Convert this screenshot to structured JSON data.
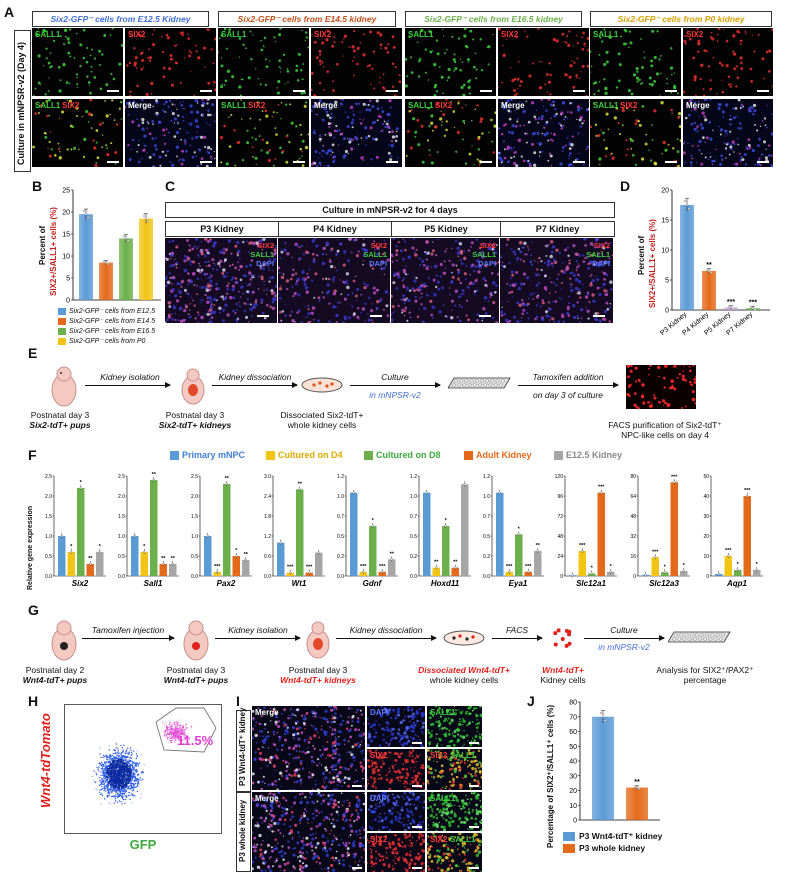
{
  "panels": {
    "a": "A",
    "b": "B",
    "c": "C",
    "d": "D",
    "e": "E",
    "f": "F",
    "g": "G",
    "h": "H",
    "i": "I",
    "j": "J"
  },
  "panelA": {
    "side_label": "Culture in mNPSR-v2 (Day 4)",
    "headers": [
      "Six2-GFP⁻ cells from E12.5 Kidney",
      "Six2-GFP⁻ cells from E14.5 kidney",
      "Six2-GFP⁻ cells from E16.5 kidney",
      "Six2-GFP⁻ cells from P0 kidney"
    ],
    "sall1": "SALL1",
    "six2": "SIX2",
    "merge": "Merge"
  },
  "panelB": {
    "ylabel_pre": "Percent of",
    "ylabel_main": "SIX2+/SALL1+ cells (%)",
    "yticks": [
      "0",
      "5",
      "10",
      "15",
      "20",
      "25"
    ],
    "legend": [
      "Six2-GFP⁻ cells from E12.5",
      "Six2-GFP⁻ cells from E14.5",
      "Six2-GFP⁻ cells from E16.5",
      "Six2-GFP⁻ cells from P0"
    ]
  },
  "panelC": {
    "title": "Culture in mNPSR-v2 for 4 days",
    "labels": [
      "P3 Kidney",
      "P4 Kidney",
      "P5 Kidney",
      "P7 Kidney"
    ],
    "six2": "SIX2",
    "sall1": "SALL1",
    "dapi": "DAPI"
  },
  "panelD": {
    "ylabel_pre": "Percent of",
    "ylabel_main": "SIX2+/SALL1+ cells (%)",
    "yticks": [
      "0",
      "5",
      "10",
      "15",
      "20"
    ],
    "categories": [
      "P3 Kidney",
      "P4 Kidney",
      "P5 Kidney",
      "P7 Kidney"
    ],
    "stars": [
      "",
      "**",
      "***",
      "***"
    ]
  },
  "panelE": {
    "steps": [
      "Kidney isolation",
      "Kidney dissociation",
      "Culture",
      "in mNPSR-v2",
      "Tamoxifen addition",
      "on day 3 of culture"
    ],
    "cap1a": "Postnatal day 3",
    "cap1b": "Six2-tdT+ pups",
    "cap2a": "Postnatal day 3",
    "cap2b": "Six2-tdT+ kidneys",
    "cap3a": "Dissociated Six2-tdT+",
    "cap3b": "whole kidney cells",
    "cap4a": "FACS purification of Six2-tdT⁺",
    "cap4b": "NPC-like cells on day 4"
  },
  "panelF": {
    "legend": [
      "Primary mNPC",
      "Cultured on D4",
      "Cultured on D8",
      "Adult Kidney",
      "E12.5 Kidney"
    ],
    "ylabel": "Relative gene expression",
    "genes": [
      "Six2",
      "Sall1",
      "Pax2",
      "Wt1",
      "Gdnf",
      "Hoxd11",
      "Eya1",
      "Slc12a1",
      "Slc12a3",
      "Aqp1"
    ]
  },
  "panelG": {
    "steps": [
      "Tamoxifen injection",
      "Kidney isolation",
      "Kidney dissociation",
      "FACS",
      "Culture",
      "in mNPSR-v2"
    ],
    "cap1a": "Postnatal day 2",
    "cap1b": "Wnt4-tdT+ pups",
    "cap2a": "Postnatal day 3",
    "cap2b": "Wnt4-tdT+ pups",
    "cap3a": "Postnatal day 3",
    "cap3b": "Wnt4-tdT+ kidneys",
    "cap4a": "Dissociated Wnt4-tdT+",
    "cap4b": "whole kidney cells",
    "cap5a": "Wnt4-tdT+",
    "cap5b": "Kidney cells",
    "cap6a": "Analysis for SIX2⁺/PAX2⁺",
    "cap6b": "percentage"
  },
  "panelH": {
    "ylabel": "Wnt4-tdTomato",
    "xlabel": "GFP",
    "gate": "11.5%"
  },
  "panelI": {
    "row1": "P3 Wnt4-tdT⁺ kidney",
    "row2": "P3 whole kidney",
    "merge": "Merge",
    "dapi": "DAPI",
    "sall1": "SALL1",
    "six2": "SIX2"
  },
  "panelJ": {
    "ylabel": "Percentage of SIX2⁺/SALL1⁺ cells (%)",
    "yticks": [
      "0",
      "10",
      "20",
      "30",
      "40",
      "50",
      "60",
      "70",
      "80"
    ],
    "legend": [
      "P3 Wnt4-tdT⁺ kidney",
      "P3 whole kidney"
    ],
    "stars": "**"
  },
  "colors": {
    "blue": "#5b9bd5",
    "orange": "#e46a1b",
    "green": "#6bb04a",
    "yellow": "#f2c416",
    "gray": "#a6a6a6"
  },
  "chart_data": [
    {
      "id": "B",
      "type": "bar",
      "categories": [
        "E12.5",
        "E14.5",
        "E16.5",
        "P0"
      ],
      "values": [
        19.5,
        8.5,
        14,
        18.5
      ],
      "ylim": [
        0,
        25
      ],
      "ylabel": "Percent of SIX2+/SALL1+ cells (%)"
    },
    {
      "id": "D",
      "type": "bar",
      "categories": [
        "P3 Kidney",
        "P4 Kidney",
        "P5 Kidney",
        "P7 Kidney"
      ],
      "values": [
        17.5,
        6.5,
        0.4,
        0.3
      ],
      "ylim": [
        0,
        20
      ],
      "ylabel": "Percent of SIX2+/SALL1+ cells (%)"
    },
    {
      "id": "F",
      "type": "bar",
      "series_names": [
        "Primary mNPC",
        "Cultured on D4",
        "Cultured on D8",
        "Adult Kidney",
        "E12.5 Kidney"
      ],
      "groups": [
        {
          "gene": "Six2",
          "values": [
            1,
            0.6,
            2.2,
            0.3,
            0.6
          ],
          "ymax": 2.5,
          "stars": [
            "",
            "*",
            "*",
            "**",
            "*"
          ]
        },
        {
          "gene": "Sall1",
          "values": [
            1,
            0.6,
            2.4,
            0.3,
            0.3
          ],
          "ymax": 2.5,
          "stars": [
            "",
            "*",
            "**",
            "**",
            "**"
          ]
        },
        {
          "gene": "Pax2",
          "values": [
            1,
            0.1,
            2.3,
            0.5,
            0.4
          ],
          "ymax": 2.5,
          "stars": [
            "",
            "***",
            "**",
            "*",
            "**"
          ]
        },
        {
          "gene": "Wt1",
          "values": [
            1,
            0.1,
            2.6,
            0.1,
            0.7
          ],
          "ymax": 3,
          "stars": [
            "",
            "***",
            "**",
            "***",
            ""
          ]
        },
        {
          "gene": "Gdnf",
          "values": [
            1,
            0.05,
            0.6,
            0.05,
            0.2
          ],
          "ymax": 1.2,
          "stars": [
            "",
            "***",
            "*",
            "***",
            "**"
          ]
        },
        {
          "gene": "Hoxd11",
          "values": [
            1,
            0.1,
            0.6,
            0.1,
            1.1
          ],
          "ymax": 1.2,
          "stars": [
            "",
            "**",
            "*",
            "**",
            ""
          ]
        },
        {
          "gene": "Eya1",
          "values": [
            1,
            0.05,
            0.5,
            0.05,
            0.3
          ],
          "ymax": 1.2,
          "stars": [
            "",
            "***",
            "*",
            "***",
            "**"
          ]
        },
        {
          "gene": "Slc12a1",
          "values": [
            1,
            30,
            3,
            100,
            5
          ],
          "ymax": 120,
          "stars": [
            "",
            "***",
            "*",
            "***",
            "*"
          ]
        },
        {
          "gene": "Slc12a3",
          "values": [
            1,
            15,
            3,
            75,
            4
          ],
          "ymax": 80,
          "stars": [
            "",
            "***",
            "*",
            "***",
            "*"
          ]
        },
        {
          "gene": "Aqp1",
          "values": [
            1,
            10,
            3,
            40,
            3
          ],
          "ymax": 50,
          "stars": [
            "",
            "***",
            "*",
            "***",
            "*"
          ]
        }
      ],
      "ylabel": "Relative gene expression"
    },
    {
      "id": "J",
      "type": "bar",
      "categories": [
        "P3 Wnt4-tdT⁺ kidney",
        "P3 whole kidney"
      ],
      "values": [
        70,
        22
      ],
      "ylim": [
        0,
        80
      ],
      "ylabel": "Percentage of SIX2⁺/SALL1⁺ cells (%)"
    }
  ]
}
